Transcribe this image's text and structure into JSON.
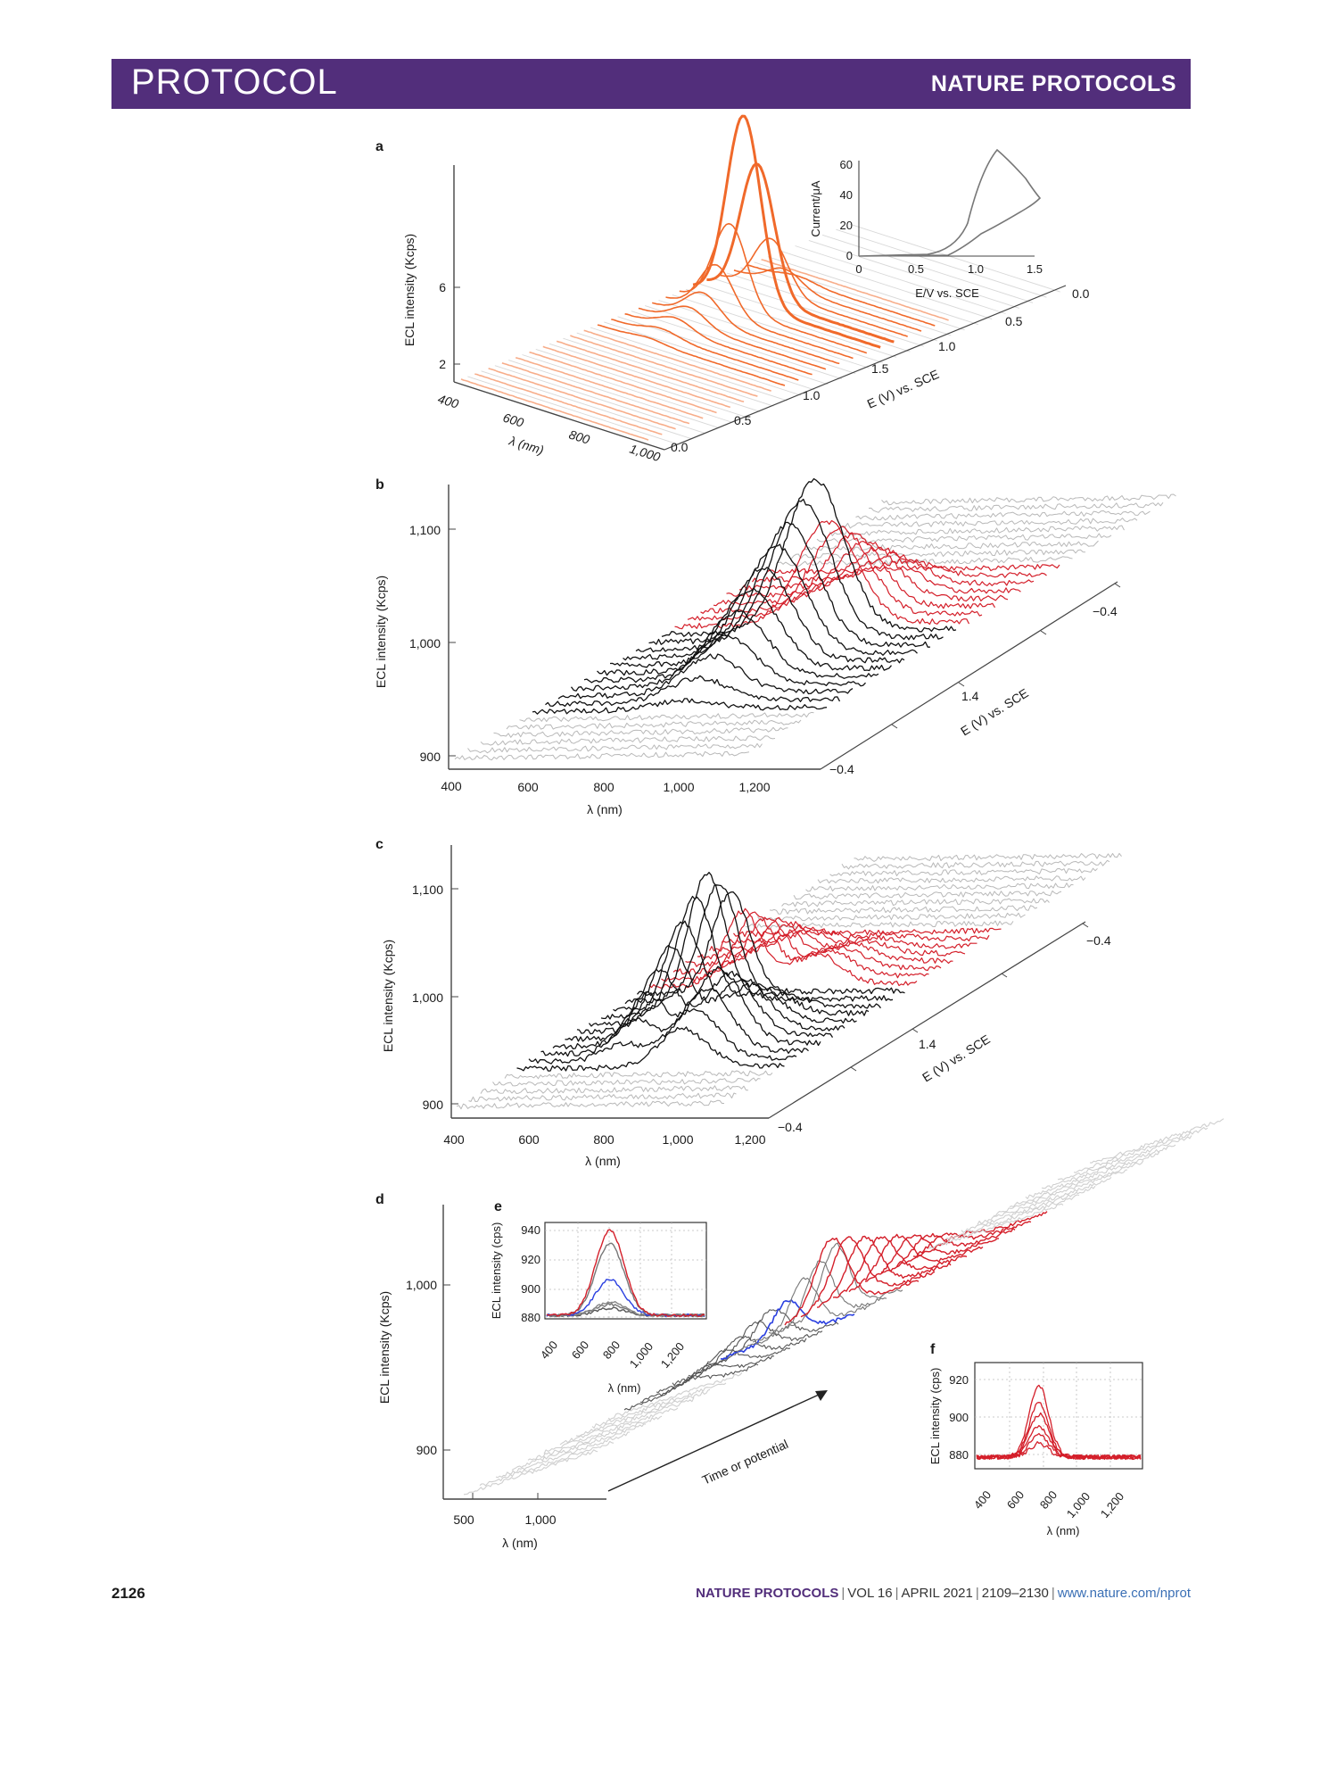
{
  "header": {
    "section": "PROTOCOL",
    "journal": "NATURE PROTOCOLS"
  },
  "footer": {
    "page": "2126",
    "journal": "NATURE PROTOCOLS",
    "volume": "VOL 16",
    "date": "APRIL 2021",
    "pages": "2109–2130",
    "url": "www.nature.com/nprot"
  },
  "colors": {
    "header_bg": "#522e7b",
    "orange": "#f0692a",
    "red": "#d41f2a",
    "black": "#111111",
    "gray": "#b3b3b3",
    "blue": "#2a3fe0"
  },
  "panels": {
    "a": {
      "letter": "a",
      "ylabel": "ECL intensity (Kcps)",
      "yticks": [
        "2",
        "6"
      ],
      "xlabel": "λ (nm)",
      "xticks": [
        "400",
        "600",
        "800",
        "1,000"
      ],
      "zlabel": "E (V) vs. SCE",
      "zticks": [
        "0.0",
        "0.5",
        "1.0",
        "1.5",
        "1.0",
        "0.5",
        "0.0"
      ],
      "inset": {
        "xlabel": "E/V vs. SCE",
        "ylabel": "Current/μA",
        "xticks": [
          "0",
          "0.5",
          "1.0",
          "1.5"
        ],
        "yticks": [
          "0",
          "20",
          "40",
          "60"
        ]
      }
    },
    "b": {
      "letter": "b",
      "ylabel": "ECL intensity (Kcps)",
      "yticks": [
        "900",
        "1,000",
        "1,100"
      ],
      "xlabel": "λ (nm)",
      "xticks": [
        "400",
        "600",
        "800",
        "1,000",
        "1,200"
      ],
      "zlabel": "E (V) vs. SCE",
      "zticks": [
        "−0.4",
        "1.4",
        "−0.4"
      ]
    },
    "c": {
      "letter": "c",
      "ylabel": "ECL intensity (Kcps)",
      "yticks": [
        "900",
        "1,000",
        "1,100"
      ],
      "xlabel": "λ (nm)",
      "xticks": [
        "400",
        "600",
        "800",
        "1,000",
        "1,200"
      ],
      "zlabel": "E (V) vs. SCE",
      "zticks": [
        "−0.4",
        "1.4",
        "−0.4"
      ]
    },
    "d": {
      "letter": "d",
      "ylabel": "ECL intensity (Kcps)",
      "yticks": [
        "900",
        "1,000"
      ],
      "xlabel": "λ (nm)",
      "xticks": [
        "500",
        "1,000"
      ],
      "arrow_label": "Time or potential"
    },
    "e": {
      "letter": "e",
      "ylabel": "ECL intensity (cps)",
      "yticks": [
        "880",
        "900",
        "920",
        "940"
      ],
      "xlabel": "λ (nm)",
      "xticks": [
        "400",
        "600",
        "800",
        "1,000",
        "1,200"
      ]
    },
    "f": {
      "letter": "f",
      "ylabel": "ECL intensity (cps)",
      "yticks": [
        "880",
        "900",
        "920"
      ],
      "xlabel": "λ (nm)",
      "xticks": [
        "400",
        "600",
        "800",
        "1,000",
        "1,200"
      ]
    }
  }
}
